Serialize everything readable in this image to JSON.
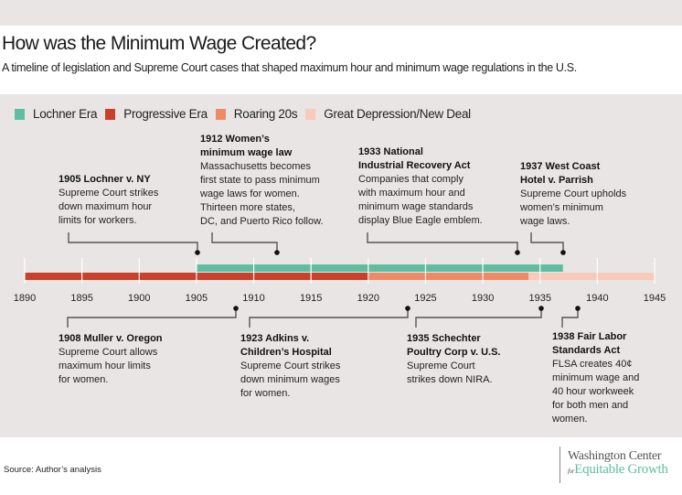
{
  "header": {
    "title": "How was the Minimum Wage Created?",
    "subtitle": "A timeline of legislation and Supreme Court cases that shaped maximum hour and minimum wage regulations in the U.S."
  },
  "colors": {
    "lochner": "#5fbea2",
    "progressive": "#c9402b",
    "roaring": "#ef8a66",
    "depression": "#f7cbb8",
    "panel": "#e9e5e4"
  },
  "chart_data": {
    "type": "timeline",
    "xlim": [
      1890,
      1945
    ],
    "ticks": [
      "1890",
      "1895",
      "1900",
      "1905",
      "1910",
      "1915",
      "1920",
      "1925",
      "1930",
      "1935",
      "1940",
      "1945"
    ],
    "eras": [
      {
        "name": "Lochner Era",
        "start": 1905,
        "end": 1937,
        "color": "#5fbea2",
        "row": "top"
      },
      {
        "name": "Progressive Era",
        "start": 1890,
        "end": 1920,
        "color": "#c9402b",
        "row": "bottom"
      },
      {
        "name": "Roaring 20s",
        "start": 1920,
        "end": 1934,
        "color": "#ef8a66",
        "row": "bottom"
      },
      {
        "name": "Great Depression/New Deal",
        "start": 1934,
        "end": 1945,
        "color": "#f7cbb8",
        "row": "bottom"
      }
    ],
    "events": [
      {
        "year": 1905,
        "side": "above",
        "title": [
          "1905 Lochner v. NY"
        ],
        "body": [
          "Supreme Court strikes",
          "down maximum hour",
          "limits for workers."
        ]
      },
      {
        "year": 1912,
        "side": "above",
        "title": [
          "1912 Women’s",
          "minimum wage law"
        ],
        "body": [
          "Massachusetts becomes",
          "first state to pass minimum",
          "wage laws for women.",
          "Thirteen more states,",
          "DC, and Puerto Rico follow."
        ]
      },
      {
        "year": 1933,
        "side": "above",
        "title": [
          "1933 National",
          "Industrial Recovery Act"
        ],
        "body": [
          "Companies that comply",
          "with maximum hour and",
          "minimum wage standards",
          "display Blue Eagle emblem."
        ]
      },
      {
        "year": 1937,
        "side": "above",
        "title": [
          "1937 West Coast",
          "Hotel v. Parrish"
        ],
        "body": [
          "Supreme Court upholds",
          "women’s minimum",
          "wage laws."
        ]
      },
      {
        "year": 1908,
        "side": "below",
        "title": [
          "1908 Muller v. Oregon"
        ],
        "body": [
          "Supreme Court allows",
          "maximum hour limits",
          "for women."
        ]
      },
      {
        "year": 1923,
        "side": "below",
        "title": [
          "1923 Adkins v.",
          "Children’s Hospital"
        ],
        "body": [
          "Supreme Court strikes",
          "down minimum wages",
          "for women."
        ]
      },
      {
        "year": 1935,
        "side": "below",
        "title": [
          "1935 Schechter",
          "Poultry Corp v. U.S."
        ],
        "body": [
          "Supreme Court",
          "strikes down NIRA."
        ]
      },
      {
        "year": 1938,
        "side": "below",
        "title": [
          "1938 Fair Labor",
          "Standards Act"
        ],
        "body": [
          "FLSA creates 40¢",
          "minimum wage and",
          "40 hour workweek",
          "for both men and",
          "women."
        ]
      }
    ]
  },
  "footer": {
    "source": "Source: Author’s analysis",
    "logo_line1": "Washington Center",
    "logo_for": "for",
    "logo_line2": "Equitable Growth"
  }
}
